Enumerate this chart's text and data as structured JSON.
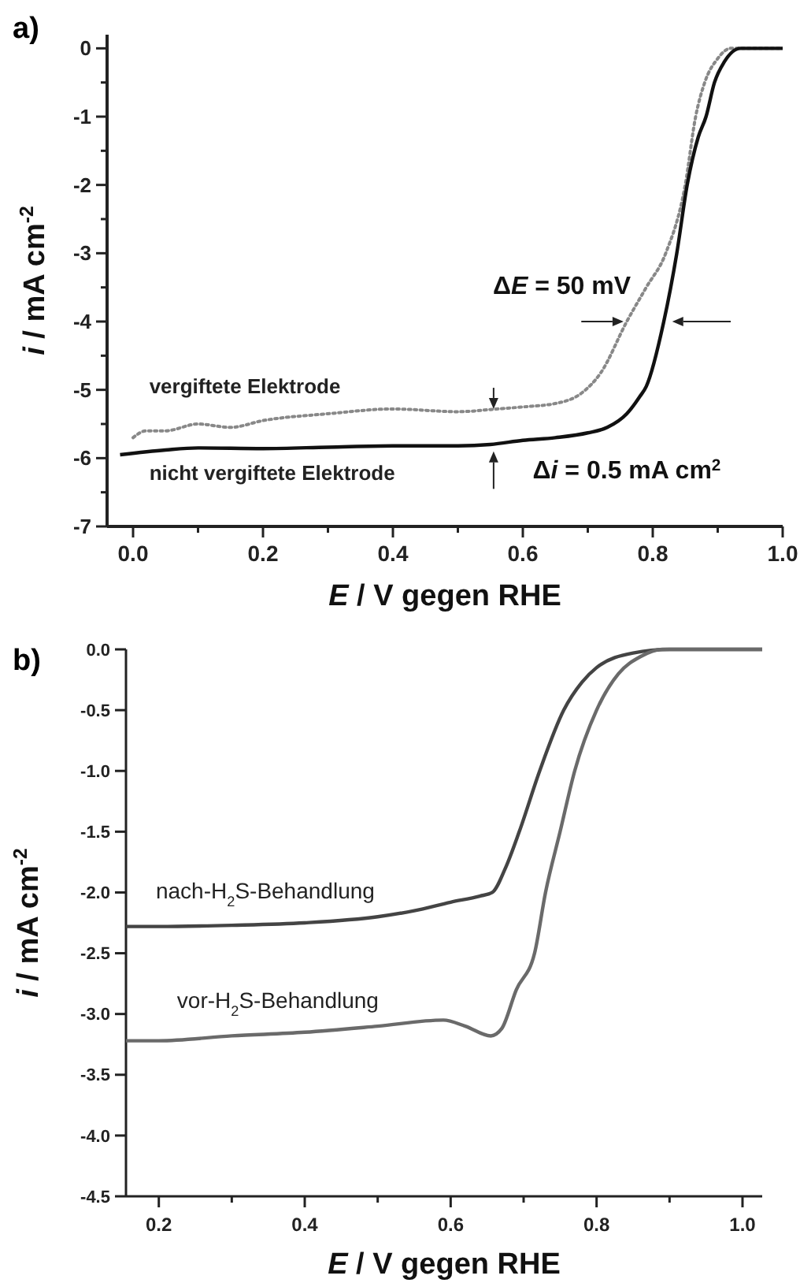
{
  "chart_data": [
    {
      "type": "line",
      "title": "a)",
      "xlabel": "E / V gegen RHE",
      "ylabel": "i / mA cm$^{-2}$",
      "xlim": [
        -0.04,
        1.0
      ],
      "ylim": [
        -7,
        0.2
      ],
      "xticks": [
        {
          "value": 0,
          "label": "0.0"
        },
        {
          "value": 0.1,
          "label": null
        },
        {
          "value": 0.2,
          "label": "0.2"
        },
        {
          "value": 0.3,
          "label": null
        },
        {
          "value": 0.4,
          "label": "0.4"
        },
        {
          "value": 0.5,
          "label": null
        },
        {
          "value": 0.6,
          "label": "0.6"
        },
        {
          "value": 0.7,
          "label": null
        },
        {
          "value": 0.8,
          "label": "0.8"
        },
        {
          "value": 0.9,
          "label": null
        },
        {
          "value": 1.0,
          "label": "1.0"
        }
      ],
      "yticks": [
        {
          "value": -7,
          "label": "-7"
        },
        {
          "value": -6.5,
          "label": null
        },
        {
          "value": -6,
          "label": "-6"
        },
        {
          "value": -5.5,
          "label": null
        },
        {
          "value": -5,
          "label": "-5"
        },
        {
          "value": -4.5,
          "label": null
        },
        {
          "value": -4,
          "label": "-4"
        },
        {
          "value": -3.5,
          "label": null
        },
        {
          "value": -3,
          "label": "-3"
        },
        {
          "value": -2.5,
          "label": null
        },
        {
          "value": -2,
          "label": "-2"
        },
        {
          "value": -1.5,
          "label": null
        },
        {
          "value": -1,
          "label": "-1"
        },
        {
          "value": -0.5,
          "label": null
        },
        {
          "value": 0,
          "label": "0"
        }
      ],
      "grid": false,
      "legend": false,
      "annotations": [
        "ΔE = 50 mV",
        "Δi = 0.5 mA cm$^{2}$"
      ],
      "series": [
        {
          "name": "vergiftete Elektrode",
          "color": "#888888",
          "line_style": "dotted",
          "x": [
            0.0,
            0.02,
            0.05,
            0.1,
            0.15,
            0.2,
            0.3,
            0.4,
            0.5,
            0.56,
            0.6,
            0.65,
            0.69,
            0.72,
            0.76,
            0.79,
            0.82,
            0.85,
            0.866,
            0.88,
            0.9,
            0.92,
            1.0
          ],
          "values": [
            -5.7,
            -5.6,
            -5.6,
            -5.5,
            -5.55,
            -5.45,
            -5.35,
            -5.28,
            -5.32,
            -5.28,
            -5.25,
            -5.2,
            -5.05,
            -4.75,
            -4.0,
            -3.5,
            -3.0,
            -2.0,
            -1.0,
            -0.5,
            -0.15,
            0,
            0
          ]
        },
        {
          "name": "nicht vergiftete Elektrode",
          "color": "#111111",
          "line_style": "solid",
          "x": [
            -0.02,
            0.05,
            0.1,
            0.2,
            0.3,
            0.4,
            0.5,
            0.55,
            0.6,
            0.65,
            0.7,
            0.73,
            0.76,
            0.78,
            0.79,
            0.817,
            0.837,
            0.853,
            0.87,
            0.882,
            0.895,
            0.91,
            0.935,
            1.0
          ],
          "values": [
            -5.95,
            -5.88,
            -5.85,
            -5.86,
            -5.84,
            -5.82,
            -5.82,
            -5.8,
            -5.74,
            -5.7,
            -5.63,
            -5.55,
            -5.35,
            -5.1,
            -4.95,
            -4.0,
            -3.0,
            -2.0,
            -1.3,
            -1.0,
            -0.5,
            -0.2,
            0,
            0
          ]
        }
      ]
    },
    {
      "type": "line",
      "title": "b)",
      "xlabel": "E / V gegen RHE",
      "ylabel": "i / mA cm$^{-2}$",
      "xlim": [
        0.155,
        1.027
      ],
      "ylim": [
        -4.5,
        0
      ],
      "xticks": [
        {
          "value": 0.2,
          "label": "0.2"
        },
        {
          "value": 0.3,
          "label": null
        },
        {
          "value": 0.4,
          "label": "0.4"
        },
        {
          "value": 0.5,
          "label": null
        },
        {
          "value": 0.6,
          "label": "0.6"
        },
        {
          "value": 0.7,
          "label": null
        },
        {
          "value": 0.8,
          "label": "0.8"
        },
        {
          "value": 0.9,
          "label": null
        },
        {
          "value": 1.0,
          "label": "1.0"
        }
      ],
      "yticks": [
        {
          "value": -4.5,
          "label": "-4.5"
        },
        {
          "value": -4,
          "label": "-4.0"
        },
        {
          "value": -3.5,
          "label": "-3.5"
        },
        {
          "value": -3,
          "label": "-3.0"
        },
        {
          "value": -2.5,
          "label": "-2.5"
        },
        {
          "value": -2,
          "label": "-2.0"
        },
        {
          "value": -1.5,
          "label": "-1.5"
        },
        {
          "value": -1,
          "label": "-1.0"
        },
        {
          "value": -0.5,
          "label": "-0.5"
        },
        {
          "value": 0,
          "label": "0.0"
        }
      ],
      "grid": false,
      "legend": false,
      "series": [
        {
          "name": "nach-H$_{2}$S-Behandlung",
          "color": "#444444",
          "line_style": "solid",
          "x": [
            0.155,
            0.2,
            0.3,
            0.4,
            0.5,
            0.55,
            0.6,
            0.64,
            0.657,
            0.675,
            0.694,
            0.722,
            0.755,
            0.78,
            0.8,
            0.85,
            0.9,
            1.027
          ],
          "values": [
            -2.28,
            -2.28,
            -2.27,
            -2.25,
            -2.2,
            -2.15,
            -2.08,
            -2.03,
            -2.0,
            -1.8,
            -1.5,
            -1.0,
            -0.5,
            -0.27,
            -0.15,
            -0.03,
            0,
            0
          ]
        },
        {
          "name": "vor-H$_{2}$S-Behandlung",
          "color": "#6a6a6a",
          "line_style": "solid",
          "x": [
            0.155,
            0.2,
            0.3,
            0.4,
            0.5,
            0.59,
            0.62,
            0.655,
            0.67,
            0.69,
            0.715,
            0.73,
            0.75,
            0.77,
            0.8,
            0.83,
            0.86,
            0.89,
            1.027
          ],
          "values": [
            -3.22,
            -3.22,
            -3.18,
            -3.15,
            -3.1,
            -3.05,
            -3.1,
            -3.18,
            -3.12,
            -2.8,
            -2.5,
            -2.0,
            -1.5,
            -1.0,
            -0.5,
            -0.2,
            -0.06,
            0,
            0
          ]
        }
      ]
    }
  ]
}
